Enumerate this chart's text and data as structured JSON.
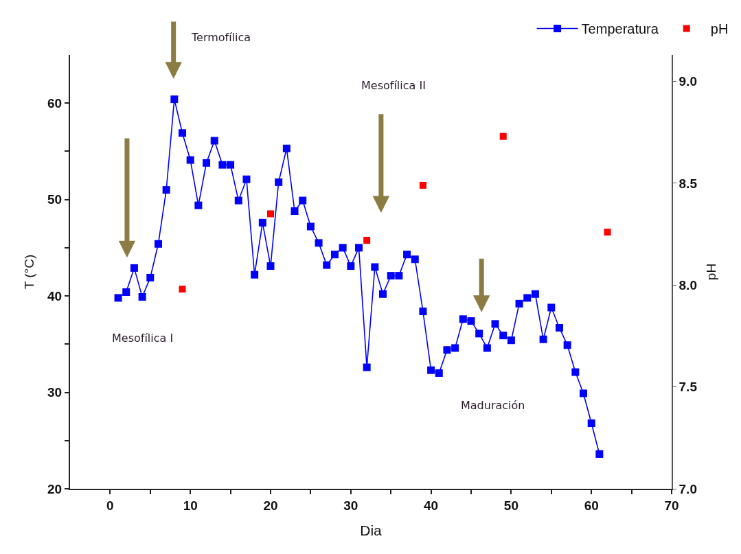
{
  "chart_data": {
    "type": "line",
    "xlabel": "Dia",
    "ylabel": "T (°C)",
    "y2label": "pH",
    "xlim": [
      -5,
      70
    ],
    "xticks": [
      0,
      {
        "value": 5,
        "label": null
      },
      10,
      {
        "value": 15,
        "label": null
      },
      20,
      {
        "value": 25,
        "label": null
      },
      30,
      {
        "value": 35,
        "label": null
      },
      40,
      {
        "value": 45,
        "label": null
      },
      50,
      {
        "value": 55,
        "label": null
      },
      60,
      {
        "value": 65,
        "label": null
      },
      70
    ],
    "ylim": [
      20,
      65
    ],
    "yticks": [
      20,
      {
        "value": 25,
        "label": null
      },
      30,
      {
        "value": 35,
        "label": null
      },
      40,
      {
        "value": 45,
        "label": null
      },
      50,
      {
        "value": 55,
        "label": null
      },
      60
    ],
    "y2lim": [
      7,
      9.13
    ],
    "y2ticks": [
      {
        "value": 7,
        "label": "7.0"
      },
      7.5,
      {
        "value": 8,
        "label": "8.0"
      },
      8.5,
      {
        "value": 9,
        "label": "9.0"
      }
    ],
    "grid": false,
    "legend": "top right",
    "marker": "square",
    "line_style": "solid",
    "series": [
      {
        "name": "Temperatura",
        "type": "line",
        "color": "#0000ff",
        "x": [
          1,
          2,
          3,
          4,
          5,
          6,
          7,
          8,
          9,
          10,
          11,
          12,
          13,
          14,
          15,
          16,
          17,
          18,
          19,
          20,
          21,
          22,
          23,
          24,
          25,
          26,
          27,
          28,
          29,
          30,
          31,
          32,
          33,
          34,
          35,
          36,
          37,
          38,
          39,
          40,
          41,
          42,
          43,
          44,
          45,
          46,
          47,
          48,
          49,
          50,
          51,
          52,
          53,
          54,
          55,
          56,
          57,
          58,
          59,
          60,
          61
        ],
        "values": [
          39.8,
          40.4,
          42.9,
          39.9,
          41.9,
          45.4,
          51.0,
          60.4,
          56.9,
          54.1,
          49.4,
          53.8,
          56.1,
          53.6,
          53.6,
          49.9,
          52.1,
          42.2,
          47.6,
          43.1,
          51.8,
          55.3,
          48.8,
          49.9,
          47.2,
          45.5,
          43.2,
          44.3,
          45.0,
          43.1,
          45.0,
          32.6,
          43.0,
          40.2,
          42.1,
          42.1,
          44.3,
          43.8,
          38.4,
          32.3,
          32.0,
          34.4,
          34.6,
          37.6,
          37.4,
          36.1,
          34.6,
          37.1,
          35.9,
          35.4,
          39.2,
          39.8,
          40.2,
          35.5,
          38.8,
          36.7,
          34.9,
          32.1,
          29.9,
          26.8,
          23.6
        ]
      },
      {
        "name": "pH",
        "type": "scatter",
        "axis": "y2",
        "color": "#ff0000",
        "x": [
          9,
          20,
          32,
          39,
          49,
          62
        ],
        "values": [
          7.98,
          8.35,
          8.22,
          8.49,
          8.73,
          8.26
        ]
      }
    ],
    "annotations": [
      "Mesofílica I",
      "Termofílica",
      "Mesofílica II",
      "Maduración"
    ]
  }
}
